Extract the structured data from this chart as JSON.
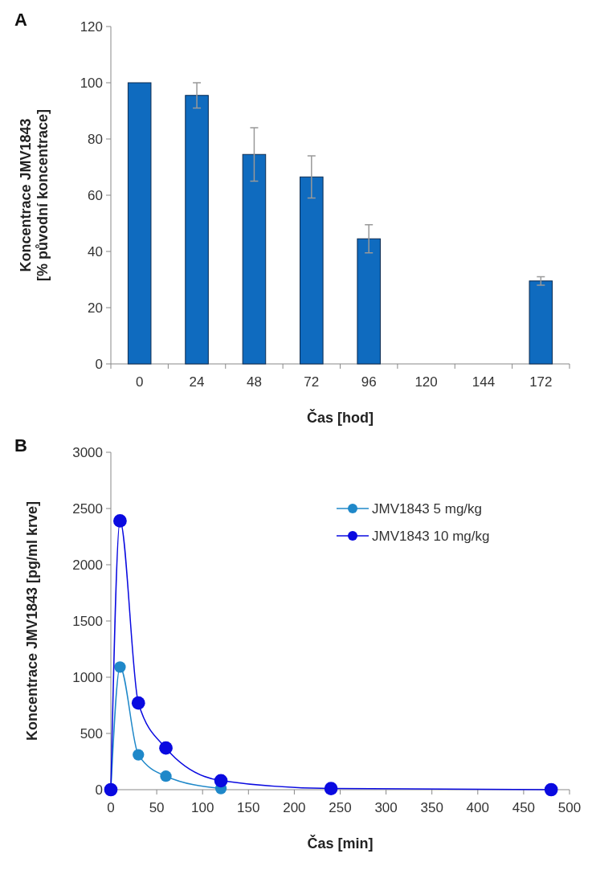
{
  "chart_data": [
    {
      "type": "bar",
      "annotations": [
        "A"
      ],
      "xlabel": "Čas [hod]",
      "ylabel": "Koncentrace JMV1843\n[% původní koncentrace]",
      "categories": [
        "0",
        "24",
        "48",
        "72",
        "96",
        "120",
        "144",
        "172"
      ],
      "values": [
        100,
        95.5,
        74.5,
        66.5,
        44.5,
        null,
        null,
        29.5
      ],
      "errors": [
        null,
        4.5,
        9.5,
        7.5,
        5,
        null,
        null,
        1.5
      ],
      "color": "#0f6bbf",
      "ylim": [
        0,
        120
      ],
      "yticks": [
        0,
        20,
        40,
        60,
        80,
        100,
        120
      ],
      "grid": false
    },
    {
      "type": "line",
      "annotations": [
        "B"
      ],
      "xlabel": "Čas [min]",
      "ylabel": "Koncentrace JMV1843 [pg/ml krve]",
      "x": [
        0,
        10,
        30,
        60,
        120,
        240,
        480
      ],
      "series": [
        {
          "name": "JMV1843 5 mg/kg",
          "color": "#1f88c9",
          "values": [
            0,
            1090,
            310,
            120,
            10,
            null,
            null
          ]
        },
        {
          "name": "JMV1843 10 mg/kg",
          "color": "#0a0ae0",
          "values": [
            0,
            2390,
            770,
            370,
            80,
            10,
            0
          ]
        }
      ],
      "xlim": [
        0,
        500
      ],
      "xticks": [
        0,
        50,
        100,
        150,
        200,
        250,
        300,
        350,
        400,
        450,
        500
      ],
      "ylim": [
        0,
        3000
      ],
      "yticks": [
        0,
        500,
        1000,
        1500,
        2000,
        2500,
        3000
      ],
      "marker": "circle",
      "legend": "top right",
      "grid": false
    }
  ]
}
